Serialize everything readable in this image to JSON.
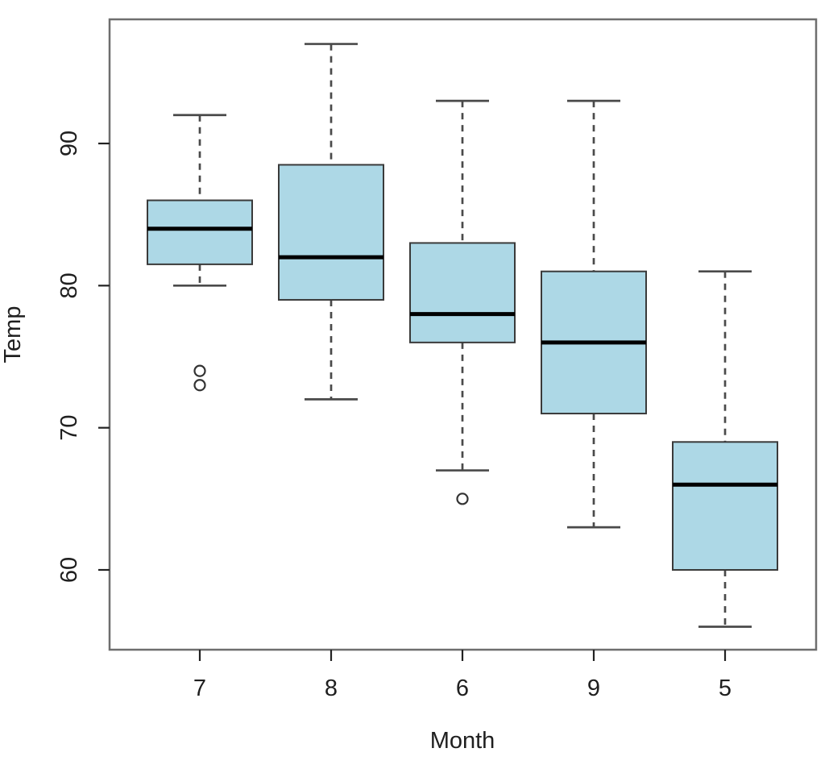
{
  "chart_data": {
    "type": "boxplot",
    "title": "",
    "xlabel": "Month",
    "ylabel": "Temp",
    "categories": [
      "7",
      "8",
      "6",
      "9",
      "5"
    ],
    "y_ticks": [
      60,
      70,
      80,
      90
    ],
    "ylim": [
      54.4,
      98.6
    ],
    "grid": false,
    "legend": "none",
    "series": [
      {
        "category": "7",
        "whisker_low": 80,
        "q1": 81.5,
        "median": 84,
        "q3": 86,
        "whisker_high": 92,
        "outliers": [
          74,
          73
        ]
      },
      {
        "category": "8",
        "whisker_low": 72,
        "q1": 79,
        "median": 82,
        "q3": 88.5,
        "whisker_high": 97,
        "outliers": []
      },
      {
        "category": "6",
        "whisker_low": 67,
        "q1": 76,
        "median": 78,
        "q3": 83,
        "whisker_high": 93,
        "outliers": [
          65
        ]
      },
      {
        "category": "9",
        "whisker_low": 63,
        "q1": 71,
        "median": 76,
        "q3": 81,
        "whisker_high": 93,
        "outliers": []
      },
      {
        "category": "5",
        "whisker_low": 56,
        "q1": 60,
        "median": 66,
        "q3": 69,
        "whisker_high": 81,
        "outliers": []
      }
    ],
    "colors": {
      "box_fill": "#ADD8E6",
      "box_border": "#3a3a3a",
      "median_line": "#000000",
      "whisker": "#4a4a4a",
      "outlier_stroke": "#333333",
      "frame": "#6e6e6e",
      "tick": "#222222",
      "text": "#1f1f1f",
      "background": "#ffffff"
    }
  }
}
